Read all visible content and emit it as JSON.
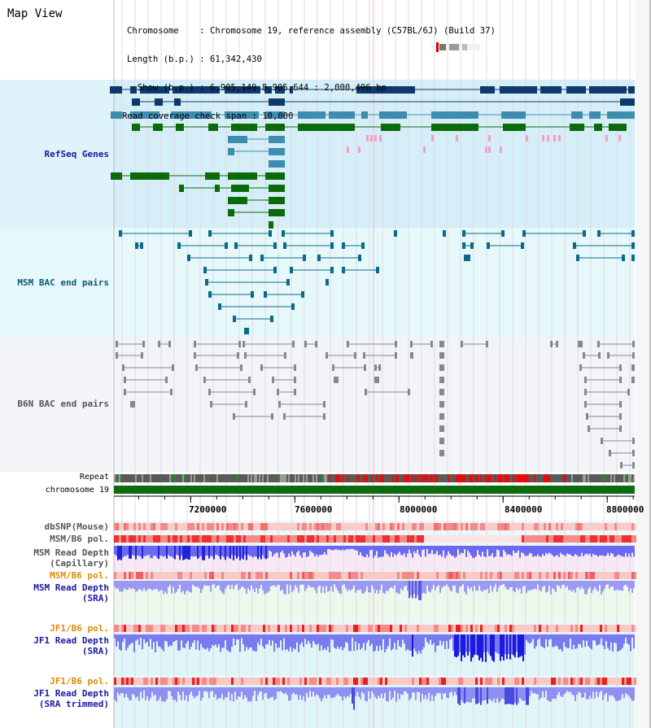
{
  "title": "Map View",
  "header": {
    "chromosome_line": "Chromosome    : Chromosome 19, reference assembly (C57BL/6J) (Build 37)",
    "length_line": "Length (b.p.) : 61,342,430",
    "show_line": "  Show (b.p.) : 6,905,149-8,905,644 : 2,000,496 bp",
    "coverage_line": "Read coverage check span : 10,000"
  },
  "tracks": {
    "refseq": "RefSeq Genes",
    "msm_bac": "MSM BAC end pairs",
    "b6n_bac": "B6N BAC end pairs",
    "repeat": "Repeat",
    "chromosome": "chromosome 19",
    "dbsnp": "dbSNP(Mouse)",
    "msm_b6_pol": "MSM/B6 pol.",
    "msm_depth_cap_1": "MSM Read Depth",
    "msm_depth_cap_2": "(Capillary)",
    "msm_b6_pol_2": "MSM/B6 pol.",
    "msm_depth_sra_1": "MSM Read Depth",
    "msm_depth_sra_2": "(SRA)",
    "jf1_b6_pol": "JF1/B6 pol.",
    "jf1_depth_sra_1": "JF1 Read Depth",
    "jf1_depth_sra_2": "(SRA)",
    "jf1_b6_pol_2": "JF1/B6 pol.",
    "jf1_depth_trim_1": "JF1 Read Depth",
    "jf1_depth_trim_2": "(SRA trimmed)"
  },
  "axis": {
    "ticks": [
      "7200000",
      "7600000",
      "8000000",
      "8400000",
      "8800000"
    ],
    "tick_values": [
      7200000,
      7600000,
      8000000,
      8400000,
      8800000
    ],
    "range": [
      6905149,
      8905644
    ]
  },
  "colors": {
    "gene_dark": "#0d3a6b",
    "gene_mid": "#3d8db0",
    "gene_green": "#0b6b0b",
    "snp_pink": "#f5a0c8",
    "msm_bac": "#0a6a8a",
    "b6n_bac": "#888888",
    "depth_dark": "#2020e0",
    "depth_light": "#8888f0",
    "pol_red": "#f02020",
    "label_blue": "#1a1aa0",
    "label_teal": "#0a5a7a",
    "label_orange": "#e08a00"
  },
  "chromosome_ideogram": {
    "marker": "current-region"
  }
}
